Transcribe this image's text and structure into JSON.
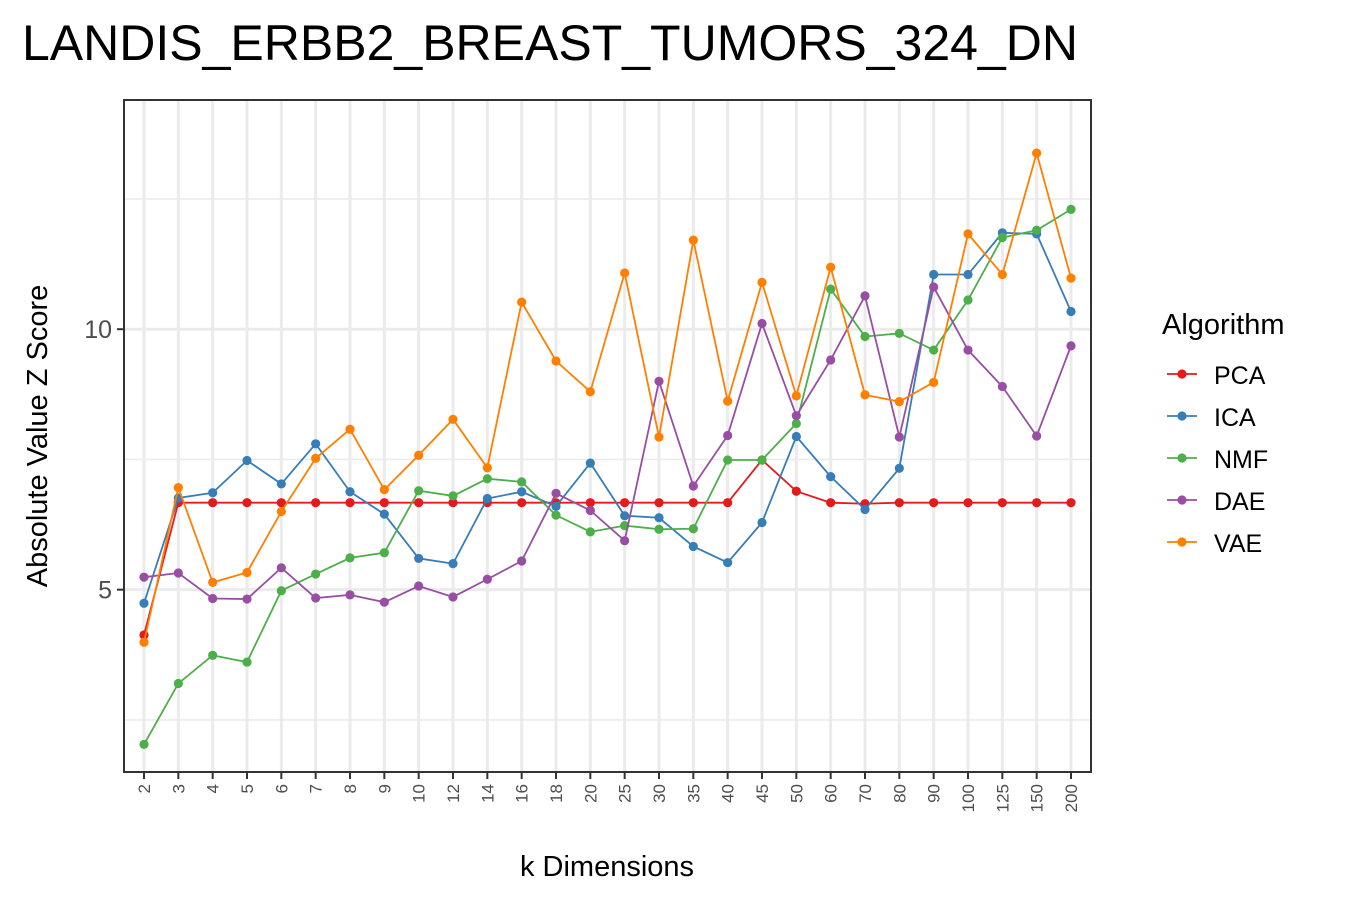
{
  "chart_data": {
    "type": "line",
    "title": "LANDIS_ERBB2_BREAST_TUMORS_324_DN",
    "xlabel": "k Dimensions",
    "ylabel": "Absolute Value Z Score",
    "categories": [
      "2",
      "3",
      "4",
      "5",
      "6",
      "7",
      "8",
      "9",
      "10",
      "12",
      "14",
      "16",
      "18",
      "20",
      "25",
      "30",
      "35",
      "40",
      "45",
      "50",
      "60",
      "70",
      "80",
      "90",
      "100",
      "125",
      "150",
      "200"
    ],
    "y_ticks": [
      5,
      10
    ],
    "ylim": [
      1.5,
      14.4
    ],
    "grid": true,
    "legend": {
      "title": "Algorithm",
      "placement": "right"
    },
    "series": [
      {
        "name": "PCA",
        "color": "#e41a1c",
        "values": [
          4.13,
          6.67,
          6.67,
          6.67,
          6.67,
          6.67,
          6.67,
          6.67,
          6.67,
          6.67,
          6.67,
          6.67,
          6.67,
          6.67,
          6.67,
          6.67,
          6.67,
          6.67,
          7.49,
          6.89,
          6.67,
          6.65,
          6.67,
          6.67,
          6.67,
          6.67,
          6.67,
          6.67
        ]
      },
      {
        "name": "ICA",
        "color": "#377eb8",
        "values": [
          4.74,
          6.76,
          6.86,
          7.48,
          7.03,
          7.8,
          6.88,
          6.45,
          5.6,
          5.5,
          6.75,
          6.88,
          6.6,
          7.43,
          6.42,
          6.38,
          5.83,
          5.52,
          6.29,
          7.94,
          7.17,
          6.54,
          7.33,
          11.05,
          11.05,
          11.85,
          11.83,
          10.34
        ]
      },
      {
        "name": "NMF",
        "color": "#4daf4a",
        "values": [
          2.03,
          3.2,
          3.74,
          3.61,
          4.98,
          5.3,
          5.61,
          5.71,
          6.9,
          6.8,
          7.13,
          7.07,
          6.43,
          6.11,
          6.23,
          6.16,
          6.17,
          7.49,
          7.49,
          8.19,
          10.77,
          9.86,
          9.92,
          9.6,
          10.56,
          11.76,
          11.9,
          12.3
        ]
      },
      {
        "name": "DAE",
        "color": "#984ea3",
        "values": [
          5.24,
          5.32,
          4.83,
          4.82,
          5.42,
          4.84,
          4.9,
          4.76,
          5.07,
          4.86,
          5.2,
          5.55,
          6.85,
          6.52,
          5.94,
          9.0,
          6.99,
          7.96,
          10.11,
          8.34,
          9.41,
          10.64,
          7.93,
          10.81,
          9.6,
          8.9,
          7.95,
          9.68
        ]
      },
      {
        "name": "VAE",
        "color": "#ff7f00",
        "values": [
          3.99,
          6.96,
          5.14,
          5.33,
          6.5,
          7.52,
          8.08,
          6.92,
          7.58,
          8.27,
          7.34,
          10.52,
          9.39,
          8.8,
          11.08,
          7.93,
          11.71,
          8.62,
          10.9,
          8.72,
          11.19,
          8.74,
          8.61,
          8.98,
          11.83,
          11.05,
          13.38,
          10.98
        ]
      }
    ]
  }
}
